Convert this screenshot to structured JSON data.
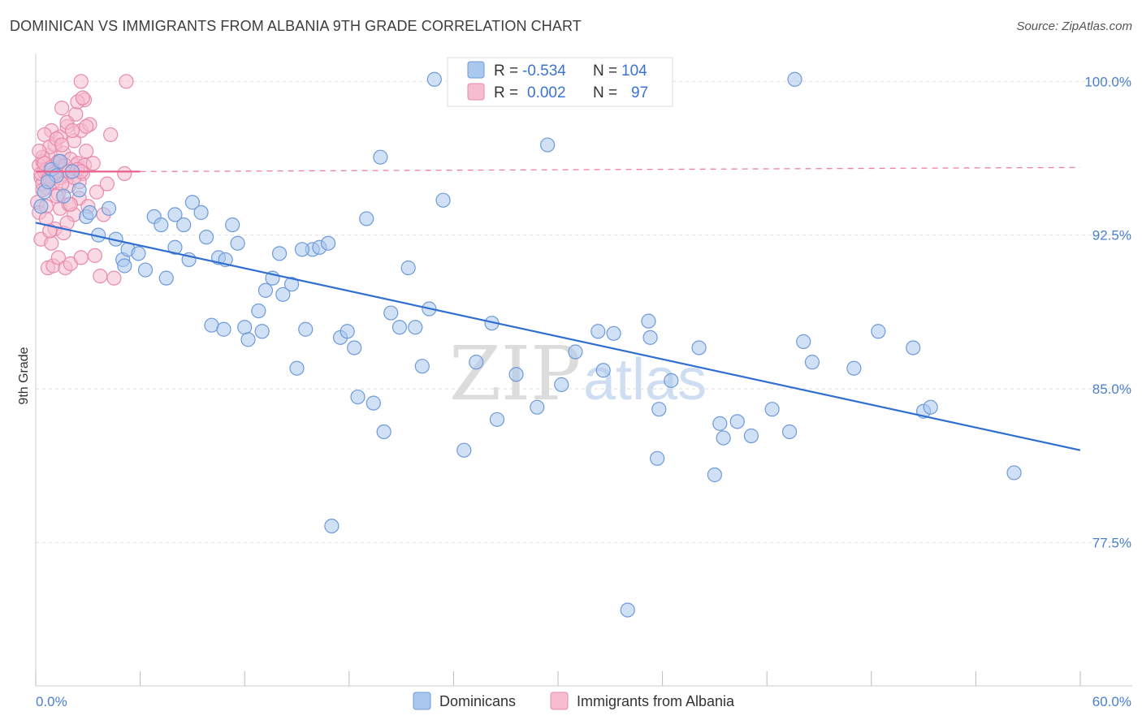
{
  "title": "DOMINICAN VS IMMIGRANTS FROM ALBANIA 9TH GRADE CORRELATION CHART",
  "source": "Source: ZipAtlas.com",
  "watermark": {
    "zip": "ZIP",
    "atlas": "atlas"
  },
  "colors": {
    "blue_fill": "#aac8ee",
    "blue_stroke": "#6f9ad8",
    "blue_line": "#2f6fcf",
    "pink_fill": "#f6bcd0",
    "pink_stroke": "#e88aab",
    "pink_line": "#e8608d",
    "tick_text": "#4a7fcf",
    "grid": "#dddddd"
  },
  "stats_box": {
    "rows": [
      {
        "r_label": "R =",
        "r_value": "-0.534",
        "n_label": "N =",
        "n_value": "104"
      },
      {
        "r_label": "R =",
        "r_value": "0.002",
        "n_label": "N =",
        "n_value": "97"
      }
    ]
  },
  "legend": {
    "items": [
      "Dominicans",
      "Immigrants from Albania"
    ]
  },
  "chart_data": {
    "type": "scatter",
    "title": "DOMINICAN VS IMMIGRANTS FROM ALBANIA 9TH GRADE CORRELATION CHART",
    "xlabel": "",
    "ylabel": "9th Grade",
    "xlim": [
      0,
      60
    ],
    "ylim": [
      70.5,
      101.2
    ],
    "x_tick_labels": [
      "0.0%",
      "60.0%"
    ],
    "y_ticks": [
      100.0,
      92.5,
      85.0,
      77.5
    ],
    "y_tick_labels": [
      "100.0%",
      "92.5%",
      "85.0%",
      "77.5%"
    ],
    "grid": "horizontal dashed",
    "legend_position": "bottom-center",
    "series": [
      {
        "name": "Dominicans",
        "r": -0.534,
        "n": 104,
        "trend": {
          "x": [
            0,
            60
          ],
          "y": [
            93.1,
            82.0
          ]
        },
        "points": [
          [
            0.5,
            94.6
          ],
          [
            0.9,
            95.7
          ],
          [
            1.2,
            95.4
          ],
          [
            1.6,
            94.4
          ],
          [
            2.1,
            95.6
          ],
          [
            2.5,
            94.7
          ],
          [
            1.4,
            96.1
          ],
          [
            0.7,
            95.1
          ],
          [
            0.3,
            93.9
          ],
          [
            2.9,
            93.4
          ],
          [
            3.1,
            93.6
          ],
          [
            3.6,
            92.5
          ],
          [
            4.2,
            93.8
          ],
          [
            4.6,
            92.3
          ],
          [
            5.0,
            91.3
          ],
          [
            5.3,
            91.8
          ],
          [
            5.9,
            91.6
          ],
          [
            6.3,
            90.8
          ],
          [
            6.8,
            93.4
          ],
          [
            7.2,
            93.0
          ],
          [
            7.5,
            90.4
          ],
          [
            8.0,
            93.5
          ],
          [
            8.5,
            93.0
          ],
          [
            8.0,
            91.9
          ],
          [
            9.0,
            94.1
          ],
          [
            8.8,
            91.3
          ],
          [
            9.5,
            93.6
          ],
          [
            9.8,
            92.4
          ],
          [
            10.1,
            88.1
          ],
          [
            10.5,
            91.4
          ],
          [
            10.8,
            87.9
          ],
          [
            11.3,
            93.0
          ],
          [
            11.6,
            92.1
          ],
          [
            12.0,
            88.0
          ],
          [
            12.2,
            87.4
          ],
          [
            12.8,
            88.8
          ],
          [
            13.0,
            87.8
          ],
          [
            13.2,
            89.8
          ],
          [
            13.6,
            90.4
          ],
          [
            14.0,
            91.6
          ],
          [
            14.2,
            89.6
          ],
          [
            14.7,
            90.1
          ],
          [
            15.0,
            86.0
          ],
          [
            15.5,
            87.9
          ],
          [
            15.9,
            91.8
          ],
          [
            16.3,
            91.9
          ],
          [
            16.8,
            92.1
          ],
          [
            17.0,
            78.3
          ],
          [
            17.5,
            87.5
          ],
          [
            17.9,
            87.8
          ],
          [
            18.3,
            87.0
          ],
          [
            18.5,
            84.6
          ],
          [
            19.0,
            93.3
          ],
          [
            19.4,
            84.3
          ],
          [
            19.8,
            96.3
          ],
          [
            20.0,
            82.9
          ],
          [
            20.4,
            88.7
          ],
          [
            20.9,
            88.0
          ],
          [
            21.4,
            90.9
          ],
          [
            21.8,
            88.0
          ],
          [
            22.2,
            86.1
          ],
          [
            22.6,
            88.9
          ],
          [
            22.9,
            100.1
          ],
          [
            23.4,
            94.2
          ],
          [
            24.2,
            100.1
          ],
          [
            24.6,
            82.0
          ],
          [
            25.3,
            86.3
          ],
          [
            26.2,
            88.2
          ],
          [
            26.5,
            83.5
          ],
          [
            27.6,
            85.7
          ],
          [
            28.8,
            84.1
          ],
          [
            29.4,
            96.9
          ],
          [
            30.2,
            85.2
          ],
          [
            31.0,
            86.8
          ],
          [
            32.3,
            87.8
          ],
          [
            32.6,
            85.9
          ],
          [
            33.2,
            87.7
          ],
          [
            34.0,
            74.2
          ],
          [
            34.5,
            100.1
          ],
          [
            35.2,
            88.3
          ],
          [
            35.3,
            87.5
          ],
          [
            35.7,
            81.6
          ],
          [
            35.8,
            84.0
          ],
          [
            36.5,
            85.4
          ],
          [
            38.1,
            87.0
          ],
          [
            39.0,
            80.8
          ],
          [
            39.3,
            83.3
          ],
          [
            39.5,
            82.6
          ],
          [
            40.3,
            83.4
          ],
          [
            41.1,
            82.7
          ],
          [
            42.3,
            84.0
          ],
          [
            43.3,
            82.9
          ],
          [
            43.6,
            100.1
          ],
          [
            44.1,
            87.3
          ],
          [
            44.6,
            86.3
          ],
          [
            47.0,
            86.0
          ],
          [
            48.4,
            87.8
          ],
          [
            50.4,
            87.0
          ],
          [
            51.0,
            83.9
          ],
          [
            51.4,
            84.1
          ],
          [
            56.2,
            80.9
          ],
          [
            5.1,
            91.0
          ],
          [
            10.9,
            91.3
          ],
          [
            15.3,
            91.8
          ]
        ]
      },
      {
        "name": "Immigrants from Albania",
        "r": 0.002,
        "n": 97,
        "trend": {
          "x": [
            0,
            6.0
          ],
          "y": [
            95.6,
            95.6
          ],
          "x_dashed": [
            6.0,
            60
          ],
          "y_dashed": [
            95.6,
            95.8
          ]
        },
        "points": [
          [
            0.2,
            95.9
          ],
          [
            0.3,
            95.3
          ],
          [
            0.4,
            96.1
          ],
          [
            0.5,
            95.6
          ],
          [
            0.6,
            94.8
          ],
          [
            0.7,
            96.4
          ],
          [
            0.8,
            95.7
          ],
          [
            0.9,
            97.6
          ],
          [
            1.0,
            95.1
          ],
          [
            1.1,
            96.9
          ],
          [
            1.2,
            95.8
          ],
          [
            1.3,
            94.5
          ],
          [
            1.4,
            97.3
          ],
          [
            1.5,
            95.9
          ],
          [
            1.6,
            96.5
          ],
          [
            1.7,
            95.4
          ],
          [
            1.8,
            97.8
          ],
          [
            1.9,
            94.9
          ],
          [
            2.0,
            96.2
          ],
          [
            2.1,
            95.6
          ],
          [
            2.2,
            97.1
          ],
          [
            2.3,
            95.9
          ],
          [
            2.4,
            96.0
          ],
          [
            2.5,
            94.3
          ],
          [
            2.6,
            97.6
          ],
          [
            2.7,
            95.5
          ],
          [
            2.8,
            99.1
          ],
          [
            2.9,
            96.6
          ],
          [
            3.0,
            93.9
          ],
          [
            3.1,
            97.9
          ],
          [
            0.1,
            94.1
          ],
          [
            0.2,
            93.6
          ],
          [
            0.3,
            92.3
          ],
          [
            0.4,
            95.0
          ],
          [
            0.5,
            97.4
          ],
          [
            0.6,
            93.9
          ],
          [
            0.7,
            90.9
          ],
          [
            0.8,
            96.8
          ],
          [
            0.9,
            92.1
          ],
          [
            1.0,
            91.0
          ],
          [
            1.1,
            92.8
          ],
          [
            1.2,
            97.2
          ],
          [
            1.3,
            91.4
          ],
          [
            1.4,
            93.8
          ],
          [
            1.5,
            96.9
          ],
          [
            1.6,
            92.6
          ],
          [
            1.7,
            90.9
          ],
          [
            1.8,
            98.0
          ],
          [
            1.9,
            94.0
          ],
          [
            2.0,
            91.1
          ],
          [
            2.1,
            97.6
          ],
          [
            2.2,
            93.5
          ],
          [
            2.3,
            98.4
          ],
          [
            2.4,
            99.0
          ],
          [
            2.5,
            95.1
          ],
          [
            2.6,
            91.4
          ],
          [
            2.7,
            99.2
          ],
          [
            2.8,
            95.9
          ],
          [
            2.9,
            97.8
          ],
          [
            3.3,
            96.0
          ],
          [
            3.5,
            94.6
          ],
          [
            3.7,
            90.5
          ],
          [
            3.9,
            93.5
          ],
          [
            4.1,
            95.0
          ],
          [
            4.3,
            97.4
          ],
          [
            4.5,
            90.4
          ],
          [
            5.1,
            95.5
          ],
          [
            5.2,
            100.0
          ],
          [
            2.6,
            100.0
          ],
          [
            0.4,
            96.3
          ],
          [
            0.6,
            95.7
          ],
          [
            0.8,
            95.4
          ],
          [
            1.0,
            95.9
          ],
          [
            1.2,
            96.0
          ],
          [
            1.4,
            95.3
          ],
          [
            1.6,
            95.7
          ],
          [
            0.3,
            95.5
          ],
          [
            0.5,
            96.0
          ],
          [
            0.7,
            95.2
          ],
          [
            0.9,
            95.8
          ],
          [
            1.1,
            95.5
          ],
          [
            1.3,
            96.1
          ],
          [
            1.5,
            95.0
          ],
          [
            1.7,
            95.9
          ],
          [
            1.9,
            95.6
          ],
          [
            2.2,
            95.3
          ],
          [
            2.4,
            95.7
          ],
          [
            2.6,
            95.6
          ],
          [
            0.2,
            96.6
          ],
          [
            0.4,
            94.7
          ],
          [
            0.6,
            93.3
          ],
          [
            0.8,
            92.7
          ],
          [
            1.2,
            94.4
          ],
          [
            1.8,
            93.1
          ],
          [
            2.0,
            94.0
          ],
          [
            3.4,
            91.5
          ],
          [
            1.5,
            98.7
          ]
        ]
      }
    ]
  }
}
